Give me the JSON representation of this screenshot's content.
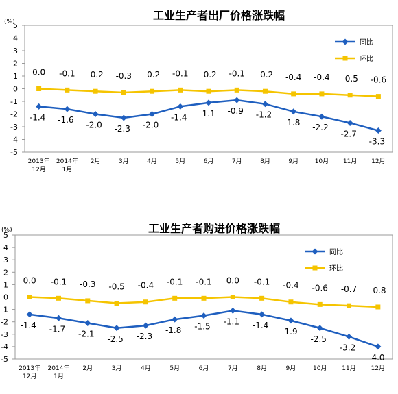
{
  "chart_data": [
    {
      "type": "line",
      "title": "工业生产者出厂价格涨跌幅",
      "ylabel": "(%)",
      "ylim": [
        -5,
        5
      ],
      "yticks": [
        5,
        4,
        3,
        2,
        1,
        0,
        -1,
        -2,
        -3,
        -4,
        -5
      ],
      "grid": false,
      "legend_position": "top-right",
      "categories": [
        [
          "2013年",
          "12月"
        ],
        [
          "2014年",
          "1月"
        ],
        [
          "2月"
        ],
        [
          "3月"
        ],
        [
          "4月"
        ],
        [
          "5月"
        ],
        [
          "6月"
        ],
        [
          "7月"
        ],
        [
          "8月"
        ],
        [
          "9月"
        ],
        [
          "10月"
        ],
        [
          "11月"
        ],
        [
          "12月"
        ]
      ],
      "series": [
        {
          "name": "同比",
          "color": "#1f5fbf",
          "marker": "diamond",
          "values": [
            -1.4,
            -1.6,
            -2.0,
            -2.3,
            -2.0,
            -1.4,
            -1.1,
            -0.9,
            -1.2,
            -1.8,
            -2.2,
            -2.7,
            -3.3
          ],
          "labels": [
            "-1.4",
            "-1.6",
            "-2.0",
            "-2.3",
            "-2.0",
            "-1.4",
            "-1.1",
            "-0.9",
            "-1.2",
            "-1.8",
            "-2.2",
            "-2.7",
            "-3.3"
          ]
        },
        {
          "name": "环比",
          "color": "#f5c400",
          "marker": "square",
          "values": [
            0.0,
            -0.1,
            -0.2,
            -0.3,
            -0.2,
            -0.1,
            -0.2,
            -0.1,
            -0.2,
            -0.4,
            -0.4,
            -0.5,
            -0.6
          ],
          "labels": [
            "0.0",
            "-0.1",
            "-0.2",
            "-0.3",
            "-0.2",
            "-0.1",
            "-0.2",
            "-0.1",
            "-0.2",
            "-0.4",
            "-0.4",
            "-0.5",
            "-0.6"
          ]
        }
      ]
    },
    {
      "type": "line",
      "title": "工业生产者购进价格涨跌幅",
      "ylabel": "(%)",
      "ylim": [
        -5,
        5
      ],
      "yticks": [
        5,
        4,
        3,
        2,
        1,
        0,
        -1,
        -2,
        -3,
        -4,
        -5
      ],
      "grid": false,
      "legend_position": "top-right",
      "categories": [
        [
          "2013年",
          "12月"
        ],
        [
          "2014年",
          "1月"
        ],
        [
          "2月"
        ],
        [
          "3月"
        ],
        [
          "4月"
        ],
        [
          "5月"
        ],
        [
          "6月"
        ],
        [
          "7月"
        ],
        [
          "8月"
        ],
        [
          "9月"
        ],
        [
          "10月"
        ],
        [
          "11月"
        ],
        [
          "12月"
        ]
      ],
      "series": [
        {
          "name": "同比",
          "color": "#1f5fbf",
          "marker": "diamond",
          "values": [
            -1.4,
            -1.7,
            -2.1,
            -2.5,
            -2.3,
            -1.8,
            -1.5,
            -1.1,
            -1.4,
            -1.9,
            -2.5,
            -3.2,
            -4.0
          ],
          "labels": [
            "-1.4",
            "-1.7",
            "-2.1",
            "-2.5",
            "-2.3",
            "-1.8",
            "-1.5",
            "-1.1",
            "-1.4",
            "-1.9",
            "-2.5",
            "-3.2",
            "-4.0"
          ]
        },
        {
          "name": "环比",
          "color": "#f5c400",
          "marker": "square",
          "values": [
            0.0,
            -0.1,
            -0.3,
            -0.5,
            -0.4,
            -0.1,
            -0.1,
            0.0,
            -0.1,
            -0.4,
            -0.6,
            -0.7,
            -0.8
          ],
          "labels": [
            "0.0",
            "-0.1",
            "-0.3",
            "-0.5",
            "-0.4",
            "-0.1",
            "-0.1",
            "0.0",
            "-0.1",
            "-0.4",
            "-0.6",
            "-0.7",
            "-0.8"
          ]
        }
      ]
    }
  ]
}
